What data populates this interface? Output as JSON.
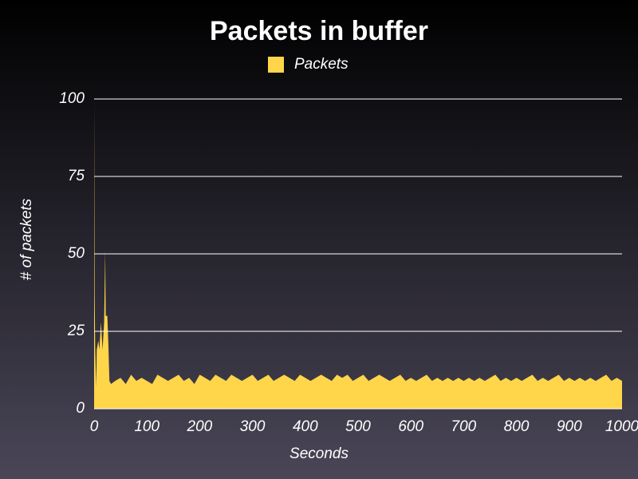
{
  "chart_data": {
    "type": "area",
    "title": "Packets in buffer",
    "xlabel": "Seconds",
    "ylabel": "# of packets",
    "x": [
      0,
      1,
      2,
      4,
      5,
      8,
      10,
      13,
      16,
      19,
      21,
      22,
      25,
      27,
      29,
      32,
      40,
      50,
      60,
      70,
      80,
      90,
      100,
      110,
      120,
      130,
      140,
      150,
      160,
      170,
      180,
      190,
      200,
      210,
      220,
      230,
      240,
      250,
      260,
      270,
      280,
      290,
      300,
      310,
      320,
      330,
      340,
      350,
      360,
      370,
      380,
      390,
      400,
      410,
      420,
      430,
      440,
      450,
      460,
      470,
      480,
      490,
      500,
      510,
      520,
      530,
      540,
      550,
      560,
      570,
      580,
      590,
      600,
      610,
      620,
      630,
      640,
      650,
      660,
      670,
      680,
      690,
      700,
      710,
      720,
      730,
      740,
      750,
      760,
      770,
      780,
      790,
      800,
      810,
      820,
      830,
      840,
      850,
      860,
      870,
      880,
      890,
      900,
      910,
      920,
      930,
      940,
      950,
      960,
      970,
      980,
      990,
      1000
    ],
    "series": [
      {
        "name": "Packets",
        "color": "#ffd54a",
        "values": [
          100,
          37,
          20,
          7,
          19,
          22,
          19,
          28,
          19,
          28,
          51,
          30,
          30,
          21,
          9,
          8,
          9,
          10,
          8,
          11,
          9,
          10,
          9,
          8,
          11,
          10,
          9,
          10,
          11,
          9,
          10,
          8,
          11,
          10,
          9,
          11,
          10,
          9,
          11,
          10,
          9,
          10,
          11,
          9,
          10,
          11,
          9,
          10,
          11,
          10,
          9,
          11,
          10,
          9,
          10,
          11,
          10,
          9,
          11,
          10,
          11,
          9,
          10,
          11,
          9,
          10,
          11,
          10,
          9,
          10,
          11,
          9,
          10,
          9,
          10,
          11,
          9,
          10,
          9,
          10,
          9,
          10,
          9,
          10,
          9,
          10,
          9,
          10,
          11,
          9,
          10,
          9,
          10,
          9,
          10,
          11,
          9,
          10,
          9,
          10,
          11,
          9,
          10,
          9,
          10,
          9,
          10,
          9,
          10,
          11,
          9,
          10,
          9
        ]
      }
    ],
    "xlim": [
      0,
      1000
    ],
    "xticks": [
      0,
      100,
      200,
      300,
      400,
      500,
      600,
      700,
      800,
      900,
      1000
    ],
    "ylim": [
      0,
      100
    ],
    "yticks": [
      0,
      25,
      50,
      75,
      100
    ],
    "grid": true
  }
}
